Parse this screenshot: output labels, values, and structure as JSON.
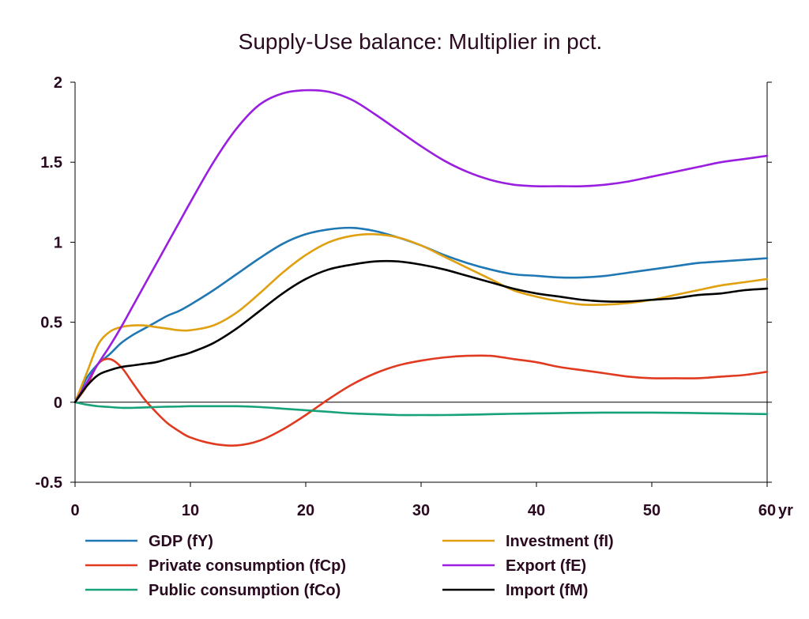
{
  "chart_data": {
    "type": "line",
    "title": "Supply-Use balance: Multiplier in pct.",
    "x_unit_label": "yr",
    "xlim": [
      0,
      60
    ],
    "ylim": [
      -0.5,
      2
    ],
    "x_ticks": [
      0,
      10,
      20,
      30,
      40,
      50,
      60
    ],
    "y_ticks": [
      -0.5,
      0,
      0.5,
      1,
      1.5,
      2
    ],
    "grid": false,
    "legend_position": "bottom",
    "x": [
      0,
      1,
      2,
      3,
      4,
      5,
      6,
      7,
      8,
      9,
      10,
      12,
      14,
      16,
      18,
      20,
      22,
      24,
      26,
      28,
      30,
      32,
      34,
      36,
      38,
      40,
      42,
      44,
      46,
      48,
      50,
      52,
      54,
      56,
      58,
      60
    ],
    "series": [
      {
        "name": "GDP (fY)",
        "color": "#1f77b4",
        "values": [
          0,
          0.15,
          0.24,
          0.3,
          0.37,
          0.42,
          0.46,
          0.5,
          0.54,
          0.57,
          0.61,
          0.7,
          0.8,
          0.9,
          0.99,
          1.05,
          1.08,
          1.09,
          1.07,
          1.03,
          0.98,
          0.92,
          0.87,
          0.83,
          0.8,
          0.79,
          0.78,
          0.78,
          0.79,
          0.81,
          0.83,
          0.85,
          0.87,
          0.88,
          0.89,
          0.9
        ]
      },
      {
        "name": "Private consumption (fCp)",
        "color": "#e03a20",
        "values": [
          0,
          0.1,
          0.24,
          0.27,
          0.22,
          0.12,
          0.02,
          -0.06,
          -0.13,
          -0.18,
          -0.22,
          -0.26,
          -0.27,
          -0.24,
          -0.17,
          -0.08,
          0.02,
          0.11,
          0.18,
          0.23,
          0.26,
          0.28,
          0.29,
          0.29,
          0.27,
          0.25,
          0.22,
          0.2,
          0.18,
          0.16,
          0.15,
          0.15,
          0.15,
          0.16,
          0.17,
          0.19
        ]
      },
      {
        "name": "Public consumption (fCo)",
        "color": "#18a27a",
        "values": [
          0,
          -0.015,
          -0.025,
          -0.03,
          -0.035,
          -0.035,
          -0.033,
          -0.03,
          -0.028,
          -0.027,
          -0.025,
          -0.025,
          -0.025,
          -0.03,
          -0.04,
          -0.05,
          -0.06,
          -0.07,
          -0.075,
          -0.08,
          -0.08,
          -0.08,
          -0.078,
          -0.075,
          -0.072,
          -0.07,
          -0.068,
          -0.066,
          -0.065,
          -0.065,
          -0.065,
          -0.066,
          -0.068,
          -0.07,
          -0.072,
          -0.074
        ]
      },
      {
        "name": "Investment (fI)",
        "color": "#e0a010",
        "values": [
          0,
          0.18,
          0.36,
          0.44,
          0.47,
          0.48,
          0.48,
          0.47,
          0.46,
          0.45,
          0.45,
          0.48,
          0.56,
          0.68,
          0.81,
          0.92,
          1.0,
          1.04,
          1.05,
          1.03,
          0.98,
          0.91,
          0.84,
          0.77,
          0.7,
          0.66,
          0.63,
          0.61,
          0.61,
          0.62,
          0.64,
          0.67,
          0.7,
          0.73,
          0.75,
          0.77
        ]
      },
      {
        "name": "Export (fE)",
        "color": "#9a1ee0",
        "values": [
          0,
          0.12,
          0.24,
          0.35,
          0.47,
          0.6,
          0.73,
          0.86,
          0.99,
          1.12,
          1.25,
          1.5,
          1.71,
          1.86,
          1.93,
          1.95,
          1.94,
          1.89,
          1.8,
          1.7,
          1.6,
          1.51,
          1.44,
          1.39,
          1.36,
          1.35,
          1.35,
          1.35,
          1.36,
          1.38,
          1.41,
          1.44,
          1.47,
          1.5,
          1.52,
          1.54
        ]
      },
      {
        "name": "Import (fM)",
        "color": "#000000",
        "values": [
          0,
          0.1,
          0.17,
          0.2,
          0.22,
          0.23,
          0.24,
          0.25,
          0.27,
          0.29,
          0.31,
          0.37,
          0.46,
          0.57,
          0.68,
          0.77,
          0.83,
          0.86,
          0.88,
          0.88,
          0.86,
          0.83,
          0.79,
          0.75,
          0.71,
          0.68,
          0.66,
          0.64,
          0.63,
          0.63,
          0.64,
          0.65,
          0.67,
          0.68,
          0.7,
          0.71
        ]
      }
    ]
  }
}
